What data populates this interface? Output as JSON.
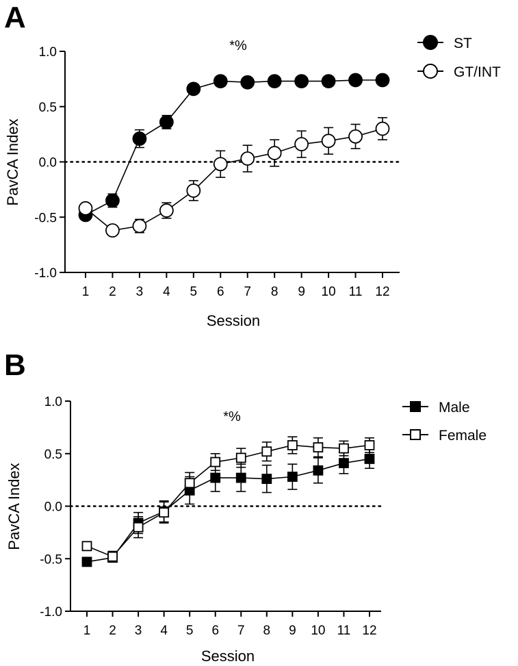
{
  "chart_data": [
    {
      "panel": "A",
      "type": "line",
      "title": "",
      "xlabel": "Session",
      "ylabel": "PavCA Index",
      "annotation": "*%",
      "categories": [
        1,
        2,
        3,
        4,
        5,
        6,
        7,
        8,
        9,
        10,
        11,
        12
      ],
      "ylim": [
        -1.0,
        1.0
      ],
      "yticks": [
        "-1.0",
        "-0.5",
        "0.0",
        "0.5",
        "1.0"
      ],
      "reference_line": 0.0,
      "legend_position": "top-right",
      "series": [
        {
          "name": "ST",
          "marker": "filled-circle",
          "values": [
            -0.48,
            -0.35,
            0.21,
            0.36,
            0.66,
            0.73,
            0.72,
            0.73,
            0.73,
            0.73,
            0.74,
            0.74
          ],
          "errors": [
            0.02,
            0.06,
            0.08,
            0.06,
            0.04,
            0.03,
            0.03,
            0.03,
            0.03,
            0.03,
            0.03,
            0.03
          ]
        },
        {
          "name": "GT/INT",
          "marker": "open-circle",
          "values": [
            -0.42,
            -0.62,
            -0.58,
            -0.44,
            -0.26,
            -0.02,
            0.03,
            0.08,
            0.16,
            0.19,
            0.23,
            0.3
          ],
          "errors": [
            0.02,
            0.04,
            0.06,
            0.07,
            0.09,
            0.12,
            0.12,
            0.12,
            0.12,
            0.12,
            0.11,
            0.1
          ]
        }
      ]
    },
    {
      "panel": "B",
      "type": "line",
      "title": "",
      "xlabel": "Session",
      "ylabel": "PavCA Index",
      "annotation": "*%",
      "categories": [
        1,
        2,
        3,
        4,
        5,
        6,
        7,
        8,
        9,
        10,
        11,
        12
      ],
      "ylim": [
        -1.0,
        1.0
      ],
      "yticks": [
        "-1.0",
        "-0.5",
        "0.0",
        "0.5",
        "1.0"
      ],
      "reference_line": 0.0,
      "legend_position": "top-right",
      "series": [
        {
          "name": "Male",
          "marker": "filled-square",
          "values": [
            -0.53,
            -0.49,
            -0.16,
            -0.05,
            0.15,
            0.27,
            0.27,
            0.26,
            0.28,
            0.34,
            0.41,
            0.45
          ],
          "errors": [
            0.01,
            0.04,
            0.1,
            0.1,
            0.13,
            0.13,
            0.13,
            0.13,
            0.12,
            0.12,
            0.1,
            0.09
          ]
        },
        {
          "name": "Female",
          "marker": "open-square",
          "values": [
            -0.38,
            -0.48,
            -0.2,
            -0.06,
            0.22,
            0.42,
            0.46,
            0.52,
            0.58,
            0.56,
            0.55,
            0.58
          ],
          "errors": [
            0.01,
            0.05,
            0.1,
            0.1,
            0.1,
            0.08,
            0.09,
            0.09,
            0.08,
            0.09,
            0.07,
            0.07
          ]
        }
      ]
    }
  ]
}
